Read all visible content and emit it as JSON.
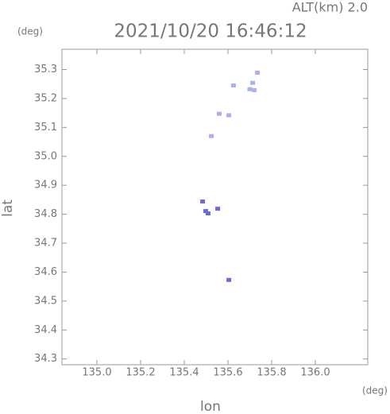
{
  "chart_data": {
    "type": "scatter",
    "subtitle": "ALT(km) 2.0",
    "title": "2021/10/20 16:46:12",
    "x_label": "lon",
    "y_label": "lat",
    "x_unit": "(deg)",
    "y_unit": "(deg)",
    "xlim": [
      134.84,
      136.24
    ],
    "ylim": [
      34.28,
      35.37
    ],
    "xticks": [
      {
        "value": 135,
        "label": "135.0"
      },
      135.2,
      135.4,
      135.6,
      135.8,
      {
        "value": 136,
        "label": "136.0"
      }
    ],
    "yticks": [
      34.3,
      34.4,
      34.5,
      34.6,
      34.7,
      34.8,
      34.9,
      {
        "value": 35,
        "label": "35.0"
      },
      35.1,
      35.2,
      35.3
    ],
    "series": [
      {
        "color": "#a9b1ee",
        "x": [
          135.735,
          135.625,
          135.713,
          135.72,
          135.7,
          135.56,
          135.604,
          135.524
        ],
        "values": [
          35.289,
          35.245,
          35.254,
          35.229,
          35.232,
          35.147,
          35.142,
          35.07
        ]
      },
      {
        "color": "#6b6bd6",
        "x": [
          135.484,
          135.498,
          135.509,
          135.553,
          135.604
        ],
        "values": [
          34.844,
          34.811,
          34.803,
          34.819,
          34.573
        ]
      }
    ]
  }
}
